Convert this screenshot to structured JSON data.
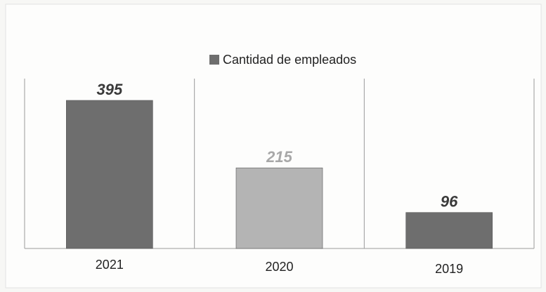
{
  "chart_data": {
    "type": "bar",
    "legend": "Cantidad de empleados",
    "legend_color": "#6e6e6e",
    "categories": [
      "2021",
      "2020",
      "2019"
    ],
    "values": [
      395,
      215,
      96
    ],
    "colors": [
      "#6e6e6e",
      "#b4b4b4",
      "#6e6e6e"
    ],
    "label_colors": [
      "#3a3a3a",
      "#a8a8a8",
      "#3a3a3a"
    ]
  }
}
